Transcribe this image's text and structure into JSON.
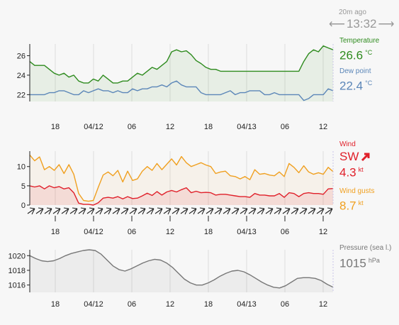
{
  "header": {
    "time_ago": "20m ago",
    "time": "13:32",
    "prev_icon": "arrow-left-icon",
    "next_icon": "arrow-right-icon"
  },
  "colors": {
    "temperature": "#2e8b1e",
    "dew_point": "#5b86b8",
    "wind": "#e0202a",
    "gusts": "#f0a020",
    "pressure": "#777777",
    "grid": "#dddddd"
  },
  "legend": {
    "temperature": {
      "label": "Temperature",
      "value": "26.6",
      "unit": "°C"
    },
    "dew_point": {
      "label": "Dew point",
      "value": "22.4",
      "unit": "°C"
    },
    "wind": {
      "label": "Wind",
      "dir": "SW",
      "value": "4.3",
      "unit": "kt",
      "icon": "wind-direction-arrow-icon"
    },
    "gusts": {
      "label": "Wind gusts",
      "value": "8.7",
      "unit": "kt"
    },
    "pressure": {
      "label": "Pressure (sea l.)",
      "value": "1015",
      "unit": "hPa"
    }
  },
  "chart_data": [
    {
      "type": "line",
      "x_ticks": [
        "18",
        "04/12",
        "06",
        "12",
        "18",
        "04/13",
        "06",
        "12"
      ],
      "ylim": [
        21.3,
        27.2
      ],
      "y_ticks": [
        "22",
        "24",
        "26"
      ],
      "series": [
        {
          "name": "Temperature",
          "values": [
            25.4,
            25.0,
            25.0,
            25.0,
            24.6,
            24.2,
            24.0,
            24.2,
            23.8,
            24.0,
            23.4,
            23.2,
            23.2,
            23.6,
            23.4,
            24.0,
            23.6,
            23.2,
            23.2,
            23.4,
            23.4,
            23.8,
            24.2,
            24.0,
            24.4,
            24.8,
            24.6,
            25.0,
            25.4,
            26.4,
            26.6,
            26.4,
            26.5,
            26.1,
            25.5,
            25.2,
            24.8,
            24.6,
            24.6,
            24.4,
            24.4,
            24.4,
            24.4,
            24.4,
            24.4,
            24.4,
            24.4,
            24.4,
            24.4,
            24.4,
            24.4,
            24.4,
            24.4,
            24.4,
            24.4,
            24.4,
            25.4,
            26.2,
            26.6,
            26.4,
            27.0,
            26.8,
            26.6
          ]
        },
        {
          "name": "Dew point",
          "values": [
            22.0,
            22.0,
            22.0,
            22.0,
            22.2,
            22.2,
            22.4,
            22.4,
            22.2,
            22.0,
            22.0,
            22.4,
            22.2,
            22.4,
            22.6,
            22.4,
            22.4,
            22.2,
            22.4,
            22.2,
            22.2,
            22.6,
            22.4,
            22.6,
            22.6,
            22.8,
            22.8,
            23.0,
            22.8,
            23.2,
            23.4,
            23.0,
            22.8,
            22.8,
            22.8,
            22.2,
            22.0,
            22.0,
            22.0,
            22.0,
            22.2,
            22.4,
            22.0,
            22.2,
            22.2,
            22.4,
            22.4,
            22.4,
            22.0,
            22.0,
            22.2,
            22.0,
            22.0,
            22.0,
            22.0,
            22.0,
            21.4,
            21.6,
            22.0,
            22.0,
            22.0,
            22.6,
            22.4
          ]
        }
      ]
    },
    {
      "type": "line",
      "x_ticks": [
        "18",
        "04/12",
        "06",
        "12",
        "18",
        "04/13",
        "06",
        "12"
      ],
      "ylim": [
        0,
        14
      ],
      "y_ticks": [
        "0",
        "5",
        "10"
      ],
      "series": [
        {
          "name": "Wind",
          "values": [
            5.0,
            4.7,
            5.0,
            4.2,
            5.0,
            4.5,
            4.8,
            4.2,
            4.5,
            3.2,
            0.5,
            0.2,
            0.2,
            0.0,
            0.6,
            1.8,
            2.0,
            1.8,
            2.2,
            1.6,
            2.2,
            1.7,
            1.8,
            2.4,
            3.1,
            2.5,
            3.5,
            2.6,
            3.4,
            3.8,
            3.4,
            4.0,
            4.5,
            3.2,
            3.6,
            3.2,
            3.3,
            3.2,
            2.6,
            2.8,
            2.8,
            2.6,
            2.4,
            2.2,
            2.2,
            2.0,
            3.0,
            2.6,
            2.6,
            2.4,
            2.4,
            3.0,
            2.0,
            3.2,
            3.0,
            2.2,
            3.0,
            3.2,
            3.0,
            3.0,
            2.8,
            4.2,
            4.3
          ]
        },
        {
          "name": "Wind gusts",
          "values": [
            13.0,
            11.5,
            12.5,
            9.2,
            10.0,
            9.0,
            10.5,
            8.2,
            10.5,
            8.0,
            3.0,
            1.2,
            1.0,
            1.2,
            4.6,
            7.8,
            8.6,
            7.6,
            9.0,
            6.0,
            8.8,
            6.4,
            6.8,
            8.8,
            10.0,
            9.0,
            10.8,
            9.2,
            10.6,
            12.0,
            10.4,
            12.6,
            11.0,
            10.0,
            10.5,
            11.0,
            10.4,
            10.0,
            8.2,
            8.6,
            8.8,
            7.6,
            7.4,
            6.8,
            7.4,
            6.6,
            9.2,
            8.0,
            8.2,
            7.8,
            7.6,
            8.6,
            7.4,
            10.8,
            9.8,
            8.4,
            10.2,
            8.6,
            8.0,
            8.4,
            8.0,
            9.8,
            8.7
          ]
        }
      ]
    },
    {
      "type": "line",
      "x_ticks": [
        "18",
        "04/12",
        "06",
        "12",
        "18",
        "04/13",
        "06",
        "12"
      ],
      "ylim": [
        1015.0,
        1020.8
      ],
      "y_ticks": [
        "1016",
        "1018",
        "1020"
      ],
      "series": [
        {
          "name": "Pressure (sea l.)",
          "values": [
            1020.0,
            1019.6,
            1019.3,
            1019.2,
            1019.3,
            1019.6,
            1020.0,
            1020.3,
            1020.5,
            1020.7,
            1020.8,
            1020.7,
            1020.2,
            1019.4,
            1018.6,
            1018.1,
            1017.9,
            1018.2,
            1018.6,
            1019.0,
            1019.3,
            1019.5,
            1019.4,
            1019.0,
            1018.4,
            1017.6,
            1016.8,
            1016.3,
            1016.0,
            1016.0,
            1016.3,
            1016.7,
            1017.2,
            1017.6,
            1017.9,
            1018.0,
            1017.8,
            1017.4,
            1016.9,
            1016.4,
            1016.0,
            1015.7,
            1015.6,
            1015.9,
            1016.4,
            1016.9,
            1017.0,
            1017.0,
            1016.9,
            1016.6,
            1016.1,
            1015.7
          ]
        }
      ]
    }
  ]
}
